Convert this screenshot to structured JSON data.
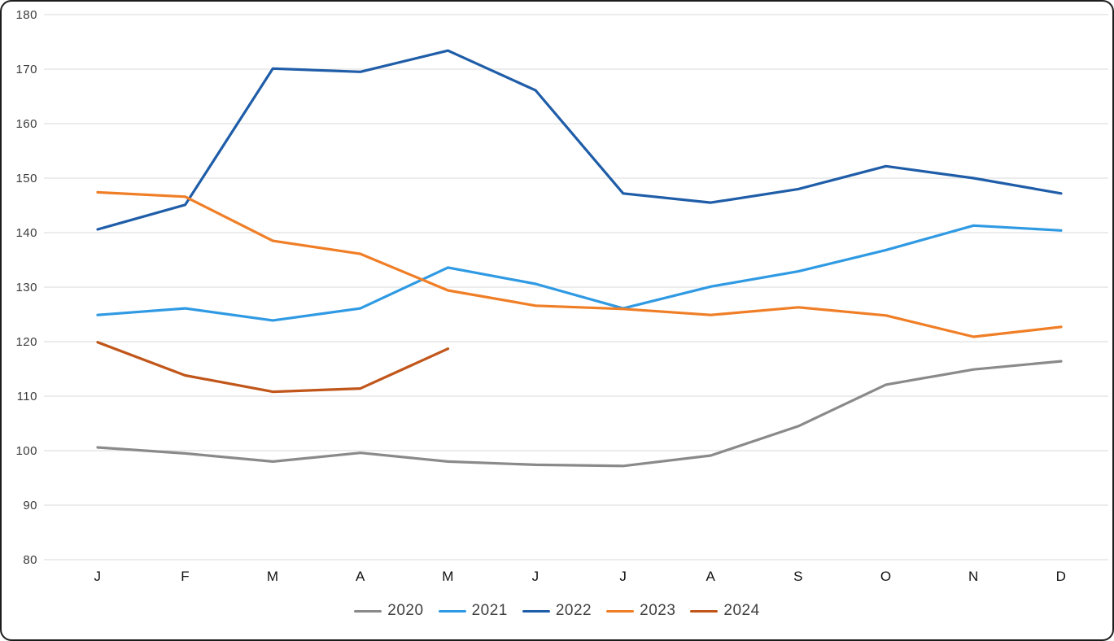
{
  "chart_data": {
    "type": "line",
    "title": "",
    "xlabel": "",
    "ylabel": "",
    "x_categories": [
      "J",
      "F",
      "M",
      "A",
      "M",
      "J",
      "J",
      "A",
      "S",
      "O",
      "N",
      "D"
    ],
    "ylim": [
      80,
      180
    ],
    "ytick_step": 10,
    "grid": "horizontal",
    "gridline_color": "#d9d9d9",
    "axis_label_color": "#3a3a3a",
    "legend_position": "bottom",
    "series": [
      {
        "name": "2020",
        "color": "#8a8a8a",
        "values": [
          100.6,
          99.5,
          98.0,
          99.6,
          98.0,
          97.4,
          97.2,
          99.1,
          104.5,
          112.1,
          114.9,
          116.4
        ]
      },
      {
        "name": "2021",
        "color": "#2f9ae3",
        "values": [
          124.9,
          126.1,
          123.9,
          126.1,
          133.6,
          130.6,
          126.1,
          130.1,
          132.9,
          136.8,
          141.3,
          140.4
        ]
      },
      {
        "name": "2022",
        "color": "#1f5da8",
        "values": [
          140.6,
          145.1,
          170.1,
          169.5,
          173.4,
          166.1,
          147.2,
          145.5,
          148.0,
          152.2,
          150.0,
          147.2
        ]
      },
      {
        "name": "2023",
        "color": "#f07e26",
        "values": [
          147.4,
          146.6,
          138.5,
          136.1,
          129.4,
          126.6,
          126.0,
          124.9,
          126.3,
          124.8,
          120.9,
          122.7
        ]
      },
      {
        "name": "2024",
        "color": "#c1561a",
        "values": [
          119.9,
          113.8,
          110.8,
          111.4,
          118.7,
          null,
          null,
          null,
          null,
          null,
          null,
          null
        ]
      }
    ]
  }
}
